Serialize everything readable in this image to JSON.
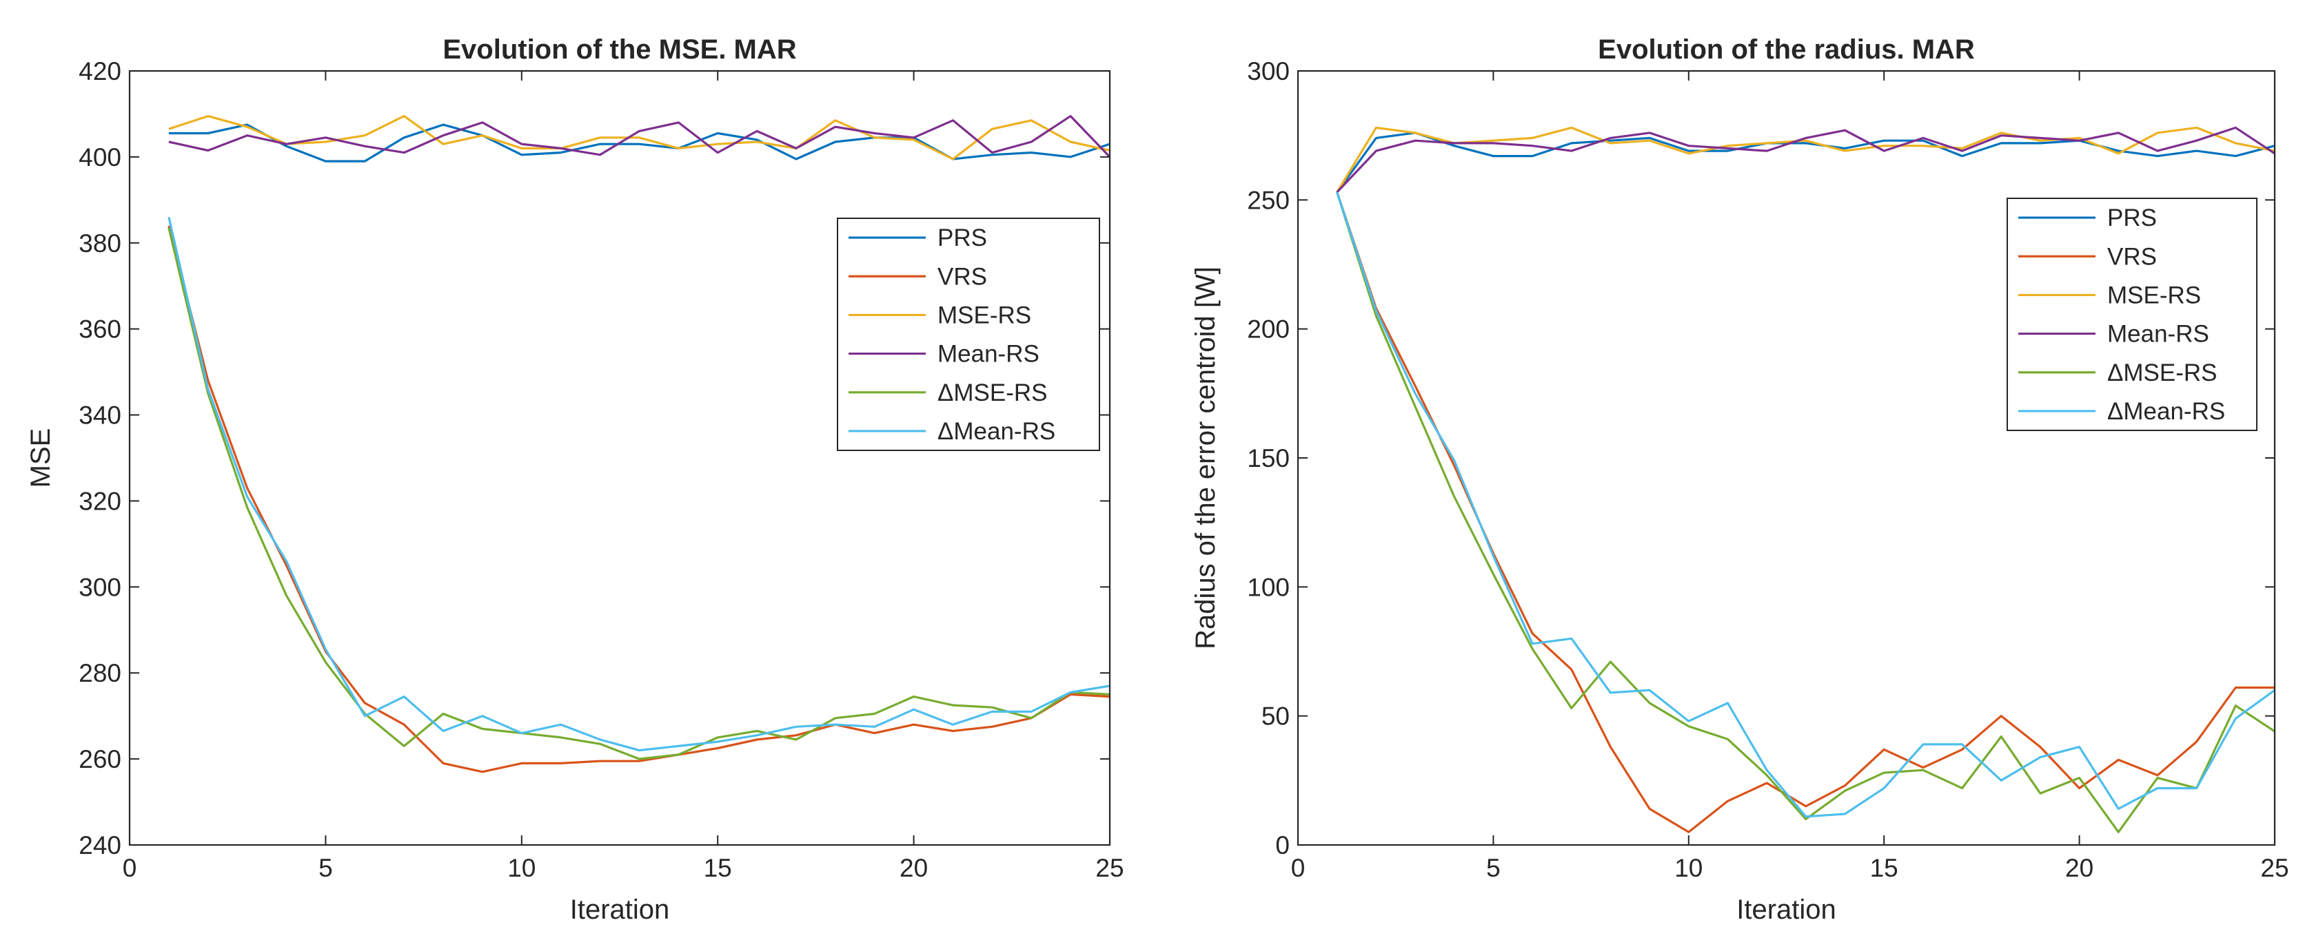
{
  "chart_data": [
    {
      "type": "line",
      "title": "Evolution of the MSE. MAR",
      "xlabel": "Iteration",
      "ylabel": "MSE",
      "xlim": [
        0,
        25
      ],
      "ylim": [
        240,
        420
      ],
      "xticks": [
        0,
        5,
        10,
        15,
        20,
        25
      ],
      "yticks": [
        240,
        260,
        280,
        300,
        320,
        340,
        360,
        380,
        400,
        420
      ],
      "legend_position": "right",
      "x": [
        1,
        2,
        3,
        4,
        5,
        6,
        7,
        8,
        9,
        10,
        11,
        12,
        13,
        14,
        15,
        16,
        17,
        18,
        19,
        20,
        21,
        22,
        23,
        24,
        25
      ],
      "series": [
        {
          "name": "PRS",
          "color": "#0072BD",
          "values": [
            405.5,
            405.5,
            407.5,
            402.5,
            399,
            399,
            404.5,
            407.5,
            405,
            400.5,
            401,
            403,
            403,
            402,
            405.5,
            404,
            399.5,
            403.5,
            404.5,
            404.5,
            399.5,
            400.5,
            401,
            400,
            403
          ]
        },
        {
          "name": "VRS",
          "color": "#D95319",
          "values": [
            384,
            348,
            323,
            305,
            285,
            273,
            268,
            259,
            257,
            259,
            259,
            259.5,
            259.5,
            261,
            262.5,
            264.5,
            265.5,
            268,
            266,
            268,
            266.5,
            267.5,
            269.5,
            275,
            274.5
          ]
        },
        {
          "name": "MSE-RS",
          "color": "#EDB120",
          "values": [
            406.5,
            409.5,
            407,
            403,
            403.5,
            405,
            409.5,
            403,
            405,
            402,
            402,
            404.5,
            404.5,
            402,
            403,
            403.5,
            402,
            408.5,
            404.5,
            404,
            399.5,
            406.5,
            408.5,
            403.5,
            401.5
          ]
        },
        {
          "name": "Mean-RS",
          "color": "#7E2F8E",
          "values": [
            403.5,
            401.5,
            405,
            403,
            404.5,
            402.5,
            401,
            405,
            408,
            403,
            402,
            400.5,
            406,
            408,
            401,
            406,
            402,
            407,
            405.5,
            404.5,
            408.5,
            401,
            403.5,
            409.5,
            400
          ]
        },
        {
          "name": "ΔMSE-RS",
          "color": "#77AC30",
          "values": [
            383.5,
            345,
            318.5,
            298,
            282.5,
            270.5,
            263,
            270.5,
            267,
            266,
            265,
            263.5,
            260,
            261,
            265,
            266.5,
            264.5,
            269.5,
            270.5,
            274.5,
            272.5,
            272,
            269.5,
            275.5,
            275
          ]
        },
        {
          "name": "ΔMean-RS",
          "color": "#4DBEEE",
          "values": [
            386,
            346,
            321,
            306,
            285.5,
            270,
            274.5,
            266.5,
            270,
            266,
            268,
            264.5,
            262,
            263,
            264,
            265.5,
            267.5,
            268,
            267.5,
            271.5,
            268,
            271,
            271,
            275.5,
            277
          ]
        }
      ]
    },
    {
      "type": "line",
      "title": "Evolution of the radius. MAR",
      "xlabel": "Iteration",
      "ylabel": "Radius of the error centroid [W]",
      "xlim": [
        0,
        25
      ],
      "ylim": [
        0,
        300
      ],
      "xticks": [
        0,
        5,
        10,
        15,
        20,
        25
      ],
      "yticks": [
        0,
        50,
        100,
        150,
        200,
        250,
        300
      ],
      "legend_position": "right",
      "x": [
        1,
        2,
        3,
        4,
        5,
        6,
        7,
        8,
        9,
        10,
        11,
        12,
        13,
        14,
        15,
        16,
        17,
        18,
        19,
        20,
        21,
        22,
        23,
        24,
        25
      ],
      "series": [
        {
          "name": "PRS",
          "color": "#0072BD",
          "values": [
            253,
            274,
            276,
            271,
            267,
            267,
            272,
            273,
            274,
            269,
            269,
            272,
            272,
            270,
            273,
            273,
            267,
            272,
            272,
            273,
            269,
            267,
            269,
            267,
            271
          ]
        },
        {
          "name": "VRS",
          "color": "#D95319",
          "values": [
            253,
            208,
            178,
            147,
            113,
            82,
            68,
            38,
            14,
            5,
            17,
            24,
            15,
            23,
            37,
            30,
            37,
            50,
            38,
            22,
            33,
            27,
            40,
            61,
            61
          ]
        },
        {
          "name": "MSE-RS",
          "color": "#EDB120",
          "values": [
            253,
            278,
            276,
            272,
            273,
            274,
            278,
            272,
            273,
            268,
            271,
            272,
            273,
            269,
            271,
            271,
            270,
            276,
            273,
            274,
            268,
            276,
            278,
            272,
            269
          ]
        },
        {
          "name": "Mean-RS",
          "color": "#7E2F8E",
          "values": [
            253,
            269,
            273,
            272,
            272,
            271,
            269,
            274,
            276,
            271,
            270,
            269,
            274,
            277,
            269,
            274,
            269,
            275,
            274,
            273,
            276,
            269,
            273,
            278,
            268
          ]
        },
        {
          "name": "ΔMSE-RS",
          "color": "#77AC30",
          "values": [
            253,
            205,
            170,
            135,
            105,
            76,
            53,
            71,
            55,
            46,
            41,
            27,
            10,
            21,
            28,
            29,
            22,
            42,
            20,
            26,
            5,
            26,
            22,
            54,
            44
          ]
        },
        {
          "name": "ΔMean-RS",
          "color": "#4DBEEE",
          "values": [
            253,
            207,
            175,
            149,
            112,
            78,
            80,
            59,
            60,
            48,
            55,
            29,
            11,
            12,
            22,
            39,
            39,
            25,
            34,
            38,
            14,
            22,
            22,
            49,
            60
          ]
        }
      ]
    }
  ]
}
